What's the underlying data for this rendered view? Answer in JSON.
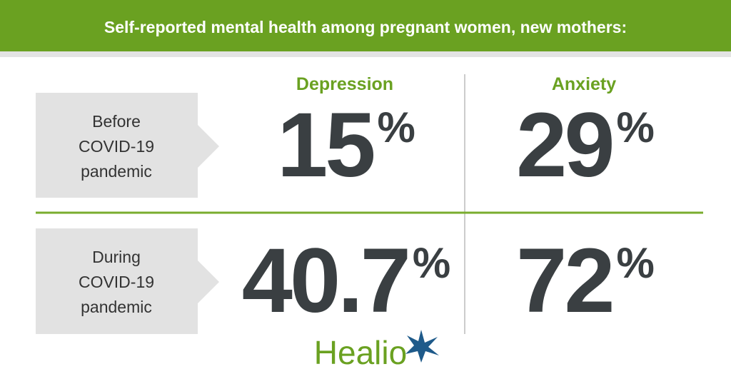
{
  "header": {
    "title": "Self-reported mental health among pregnant women, new mothers:"
  },
  "columns": [
    "Depression",
    "Anxiety"
  ],
  "rows": [
    {
      "label": [
        "Before",
        "COVID-19",
        "pandemic"
      ],
      "values": [
        {
          "number": "15",
          "unit": "%"
        },
        {
          "number": "29",
          "unit": "%"
        }
      ]
    },
    {
      "label": [
        "During",
        "COVID-19",
        "pandemic"
      ],
      "values": [
        {
          "number": "40.7",
          "unit": "%"
        },
        {
          "number": "72",
          "unit": "%"
        }
      ]
    }
  ],
  "logo": "Healio"
}
